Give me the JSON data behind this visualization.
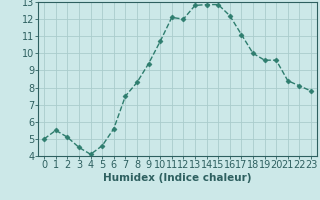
{
  "xlabel": "Humidex (Indice chaleur)",
  "x": [
    0,
    1,
    2,
    3,
    4,
    5,
    6,
    7,
    8,
    9,
    10,
    11,
    12,
    13,
    14,
    15,
    16,
    17,
    18,
    19,
    20,
    21,
    22,
    23
  ],
  "y": [
    5.0,
    5.5,
    5.1,
    4.5,
    4.1,
    4.6,
    5.6,
    7.5,
    8.3,
    9.4,
    10.7,
    12.1,
    12.0,
    12.8,
    12.85,
    12.85,
    12.2,
    11.1,
    10.0,
    9.6,
    9.6,
    8.4,
    8.1,
    7.8
  ],
  "line_color": "#2e7d6e",
  "marker": "D",
  "marker_size": 2.5,
  "bg_color": "#cce8e8",
  "grid_color": "#aacccc",
  "ylim": [
    4,
    13
  ],
  "xlim": [
    -0.5,
    23.5
  ],
  "yticks": [
    4,
    5,
    6,
    7,
    8,
    9,
    10,
    11,
    12,
    13
  ],
  "xtick_labels": [
    "0",
    "1",
    "2",
    "3",
    "4",
    "5",
    "6",
    "7",
    "8",
    "9",
    "10",
    "11",
    "12",
    "13",
    "14",
    "15",
    "16",
    "17",
    "18",
    "19",
    "20",
    "21",
    "22",
    "23"
  ],
  "xlabel_fontsize": 7.5,
  "tick_fontsize": 7,
  "linewidth": 1.0
}
